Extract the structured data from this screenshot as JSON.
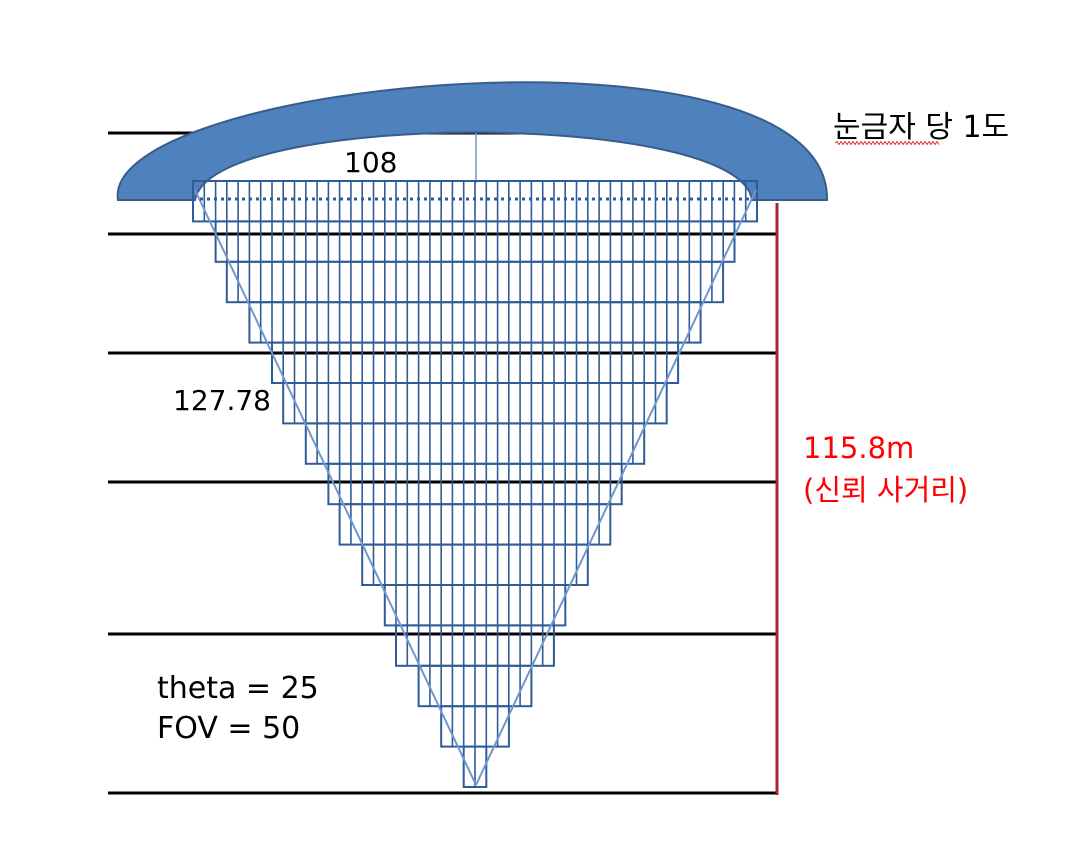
{
  "colors": {
    "lens_fill": "#4F81BD",
    "lens_stroke": "#385D8A",
    "grid_stroke": "#2F5C96",
    "cone_edge": "#6F97D0",
    "guide_line": "#000000",
    "range_bar": "#A5262C",
    "range_text": "#FF0000",
    "spell_underline": "#E03030"
  },
  "labels": {
    "title": "눈금자 당 1도",
    "top_width": "108",
    "slant_length": "127.78",
    "range_value": "115.8m",
    "range_caption": "(신뢰 사거리)",
    "theta": "theta = 25",
    "fov": "FOV = 50"
  },
  "cone": {
    "columns": 50,
    "rows": 15
  }
}
